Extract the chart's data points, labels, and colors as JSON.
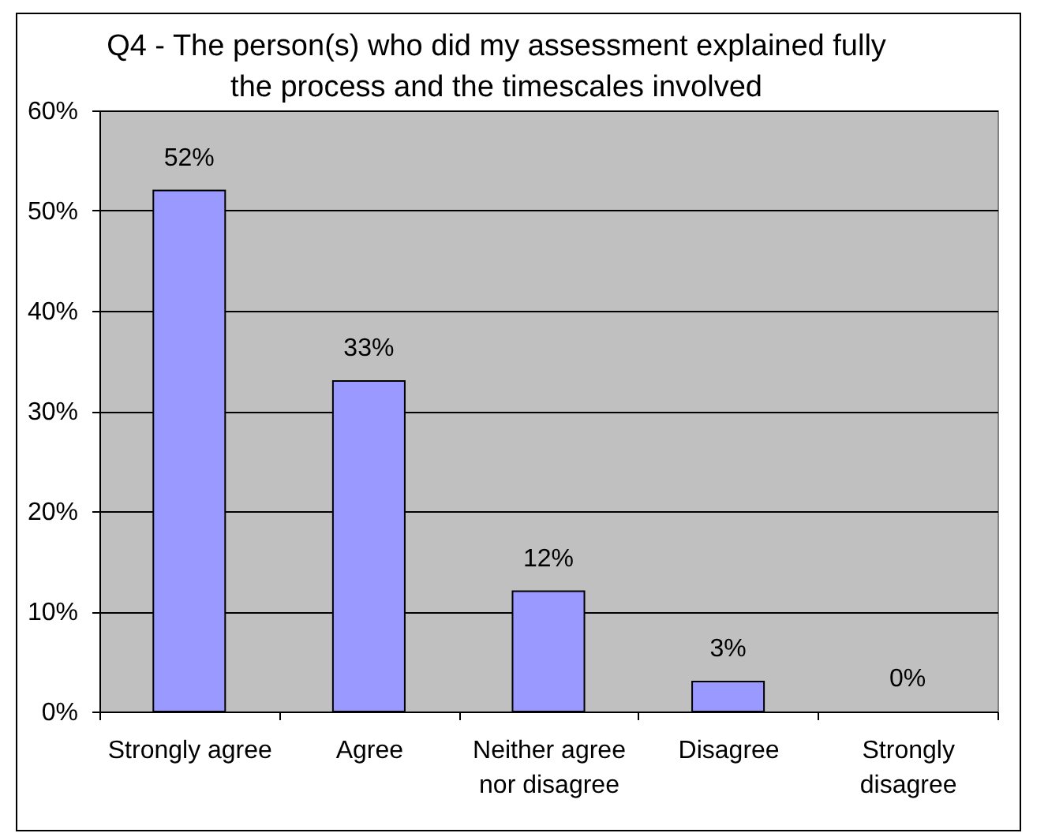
{
  "chart_data": {
    "type": "bar",
    "title": "Q4 - The person(s) who did my assessment explained fully the process and the timescales involved",
    "categories": [
      "Strongly agree",
      "Agree",
      "Neither agree nor disagree",
      "Disagree",
      "Strongly disagree"
    ],
    "values": [
      52,
      33,
      12,
      3,
      0
    ],
    "value_labels": [
      "52%",
      "33%",
      "12%",
      "3%",
      "0%"
    ],
    "color": "#9999ff",
    "ylim": [
      0,
      60
    ],
    "yticks": [
      {
        "value": 0,
        "label": "0%"
      },
      {
        "value": 10,
        "label": "10%"
      },
      {
        "value": 20,
        "label": "20%"
      },
      {
        "value": 30,
        "label": "30%"
      },
      {
        "value": 40,
        "label": "40%"
      },
      {
        "value": 50,
        "label": "50%"
      },
      {
        "value": 60,
        "label": "60%"
      }
    ],
    "grid": "y"
  }
}
